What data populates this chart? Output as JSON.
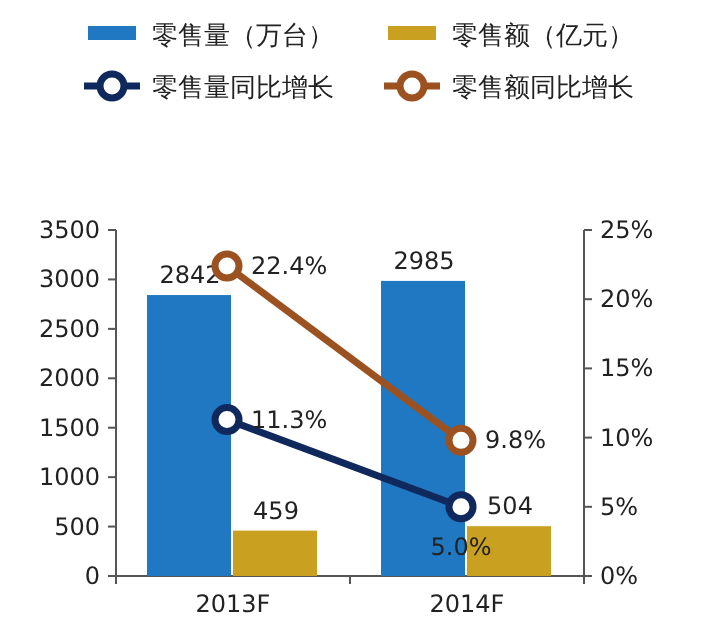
{
  "chart_data": {
    "type": "bar",
    "categories": [
      "2013F",
      "2014F"
    ],
    "series": [
      {
        "name": "零售量（万台）",
        "color": "#1f78c1",
        "values": [
          2842,
          2985
        ],
        "value_labels": [
          "2842",
          "2985"
        ]
      },
      {
        "name": "零售额（亿元）",
        "color": "#c9a020",
        "values": [
          459,
          504
        ],
        "value_labels": [
          "459",
          "504"
        ]
      },
      {
        "name": "零售量同比增长",
        "type": "line",
        "axis": "y2",
        "color": "#10295c",
        "marker": "circle",
        "values": [
          11.3,
          5.0
        ],
        "value_labels": [
          "11.3%",
          "5.0%"
        ]
      },
      {
        "name": "零售额同比增长",
        "type": "line",
        "axis": "y2",
        "color": "#9c5220",
        "marker": "circle",
        "values": [
          22.4,
          9.8
        ],
        "value_labels": [
          "22.4%",
          "9.8%"
        ]
      }
    ],
    "ylim": [
      0,
      3500
    ],
    "yticks": [
      0,
      500,
      1000,
      1500,
      2000,
      2500,
      3000,
      3500
    ],
    "y2lim": [
      0,
      25
    ],
    "y2ticks": [
      {
        "value": 0,
        "label": "0%"
      },
      {
        "value": 5,
        "label": "5%"
      },
      {
        "value": 10,
        "label": "10%"
      },
      {
        "value": 15,
        "label": "15%"
      },
      {
        "value": 20,
        "label": "20%"
      },
      {
        "value": 25,
        "label": "25%"
      }
    ],
    "legend": "top",
    "grid": false
  }
}
